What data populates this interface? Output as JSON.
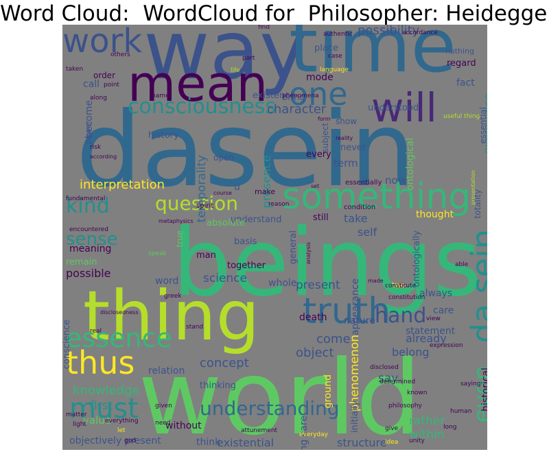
{
  "title": "Word Cloud:  WordCloud for  Philosopher: Heidegger",
  "palette": {
    "background": "#808080",
    "purple": "#440154",
    "indigo": "#3b528b",
    "blue": "#31688e",
    "teal": "#21908d",
    "green": "#35b779",
    "lime": "#5ec962",
    "yellowgreen": "#b5de2b",
    "yellow": "#fde725",
    "violet": "#482878"
  },
  "words": [
    {
      "text": "way",
      "color": "#3b528b"
    },
    {
      "text": "time",
      "color": "#31688e"
    },
    {
      "text": "dasein",
      "color": "#31688e"
    },
    {
      "text": "beings",
      "color": "#35b779"
    },
    {
      "text": "world",
      "color": "#5ec962"
    },
    {
      "text": "thing",
      "color": "#b5de2b"
    },
    {
      "text": "mean",
      "color": "#440154"
    },
    {
      "text": "one",
      "color": "#31688e"
    },
    {
      "text": "will",
      "color": "#482878"
    },
    {
      "text": "work",
      "color": "#3b528b"
    },
    {
      "text": "something",
      "color": "#35b779"
    },
    {
      "text": "truth",
      "color": "#31688e"
    },
    {
      "text": "essence",
      "color": "#35b779"
    },
    {
      "text": "thus",
      "color": "#fde725"
    },
    {
      "text": "must",
      "color": "#21908d"
    },
    {
      "text": "da sein",
      "color": "#21908d"
    },
    {
      "text": "consciousness",
      "color": "#21908d"
    },
    {
      "text": "question",
      "color": "#b5de2b"
    },
    {
      "text": "understanding",
      "color": "#31688e"
    },
    {
      "text": "hand",
      "color": "#3b528b"
    },
    {
      "text": "kind",
      "color": "#21908d"
    },
    {
      "text": "sense",
      "color": "#21908d"
    },
    {
      "text": "even",
      "color": "#35b779"
    },
    {
      "text": "interpretation",
      "color": "#fde725"
    },
    {
      "text": "knowledge",
      "color": "#35b779"
    },
    {
      "text": "concept",
      "color": "#3b528b"
    },
    {
      "text": "possibility",
      "color": "#3b528b"
    },
    {
      "text": "character",
      "color": "#3b528b"
    },
    {
      "text": "presence",
      "color": "#21908d"
    },
    {
      "text": "temporality",
      "color": "#31688e"
    },
    {
      "text": "experience",
      "color": "#21908d"
    },
    {
      "text": "ontological",
      "color": "#5ec962"
    },
    {
      "text": "primordial",
      "color": "#3b528b"
    },
    {
      "text": "science",
      "color": "#3b528b"
    },
    {
      "text": "present",
      "color": "#3b528b"
    },
    {
      "text": "come",
      "color": "#3b528b"
    },
    {
      "text": "object",
      "color": "#3b528b"
    },
    {
      "text": "phenomenon",
      "color": "#fde725"
    },
    {
      "text": "ground",
      "color": "#fde725"
    },
    {
      "text": "rather",
      "color": "#35b779"
    },
    {
      "text": "within",
      "color": "#35b779"
    },
    {
      "text": "say",
      "color": "#3b528b"
    },
    {
      "text": "first",
      "color": "#21908d"
    },
    {
      "text": "value",
      "color": "#5ec962"
    },
    {
      "text": "structure",
      "color": "#3b528b"
    },
    {
      "text": "existential",
      "color": "#3b528b"
    },
    {
      "text": "think",
      "color": "#3b528b"
    },
    {
      "text": "objectively present",
      "color": "#3b528b"
    },
    {
      "text": "without",
      "color": "#440154"
    },
    {
      "text": "historical",
      "color": "#440154"
    },
    {
      "text": "taking care",
      "color": "#3b528b"
    },
    {
      "text": "initially",
      "color": "#3b528b"
    },
    {
      "text": "already",
      "color": "#3b528b"
    },
    {
      "text": "belong",
      "color": "#3b528b"
    },
    {
      "text": "statement",
      "color": "#3b528b"
    },
    {
      "text": "always",
      "color": "#3b528b"
    },
    {
      "text": "care",
      "color": "#3b528b"
    },
    {
      "text": "relation",
      "color": "#3b528b"
    },
    {
      "text": "thinking",
      "color": "#3b528b"
    },
    {
      "text": "conscience",
      "color": "#3b528b"
    },
    {
      "text": "death",
      "color": "#440154"
    },
    {
      "text": "nature",
      "color": "#3b528b"
    },
    {
      "text": "word",
      "color": "#3b528b"
    },
    {
      "text": "whole",
      "color": "#3b528b"
    },
    {
      "text": "appearance",
      "color": "#3b528b"
    },
    {
      "text": "possible",
      "color": "#440154"
    },
    {
      "text": "remain",
      "color": "#5ec962"
    },
    {
      "text": "together",
      "color": "#440154"
    },
    {
      "text": "meaning",
      "color": "#440154"
    },
    {
      "text": "understand",
      "color": "#3b528b"
    },
    {
      "text": "absolute",
      "color": "#5ec962"
    },
    {
      "text": "take",
      "color": "#3b528b"
    },
    {
      "text": "self",
      "color": "#3b528b"
    },
    {
      "text": "still",
      "color": "#440154"
    },
    {
      "text": "thought",
      "color": "#fde725"
    },
    {
      "text": "general",
      "color": "#3b528b"
    },
    {
      "text": "basis",
      "color": "#3b528b"
    },
    {
      "text": "ontologically",
      "color": "#3b528b"
    },
    {
      "text": "term",
      "color": "#3b528b"
    },
    {
      "text": "every",
      "color": "#440154"
    },
    {
      "text": "never",
      "color": "#3b528b"
    },
    {
      "text": "history",
      "color": "#3b528b"
    },
    {
      "text": "open",
      "color": "#3b528b"
    },
    {
      "text": "man",
      "color": "#440154"
    },
    {
      "text": "u",
      "color": "#3b528b"
    },
    {
      "text": "make",
      "color": "#440154"
    },
    {
      "text": "now",
      "color": "#3b528b"
    },
    {
      "text": "regard",
      "color": "#440154"
    },
    {
      "text": "fact",
      "color": "#3b528b"
    },
    {
      "text": "mode",
      "color": "#440154"
    },
    {
      "text": "bring",
      "color": "#3b528b"
    },
    {
      "text": "understood",
      "color": "#3b528b"
    },
    {
      "text": "existence",
      "color": "#3b528b"
    },
    {
      "text": "become",
      "color": "#3b528b"
    },
    {
      "text": "call",
      "color": "#3b528b"
    },
    {
      "text": "order",
      "color": "#440154"
    },
    {
      "text": "place",
      "color": "#3b528b"
    },
    {
      "text": "nothing",
      "color": "#3b528b"
    },
    {
      "text": "show",
      "color": "#3b528b"
    },
    {
      "text": "subject",
      "color": "#3b528b"
    },
    {
      "text": "essential",
      "color": "#3b528b"
    },
    {
      "text": "totality",
      "color": "#3b528b"
    },
    {
      "text": "power",
      "color": "#3b528b"
    },
    {
      "text": "fundamental",
      "color": "#440154"
    },
    {
      "text": "encountered",
      "color": "#440154"
    },
    {
      "text": "true",
      "color": "#5ec962"
    },
    {
      "text": "condition",
      "color": "#440154"
    },
    {
      "text": "essentially",
      "color": "#440154"
    },
    {
      "text": "reason",
      "color": "#440154"
    },
    {
      "text": "spirit",
      "color": "#440154"
    },
    {
      "text": "two",
      "color": "#fde725"
    },
    {
      "text": "able",
      "color": "#440154"
    },
    {
      "text": "constitution",
      "color": "#440154"
    },
    {
      "text": "constitute",
      "color": "#440154"
    },
    {
      "text": "expression",
      "color": "#440154"
    },
    {
      "text": "saying",
      "color": "#440154"
    },
    {
      "text": "view",
      "color": "#440154"
    },
    {
      "text": "disclosed",
      "color": "#440154"
    },
    {
      "text": "determined",
      "color": "#440154"
    },
    {
      "text": "philosophy",
      "color": "#440154"
    },
    {
      "text": "known",
      "color": "#440154"
    },
    {
      "text": "human",
      "color": "#440154"
    },
    {
      "text": "long",
      "color": "#440154"
    },
    {
      "text": "give",
      "color": "#440154"
    },
    {
      "text": "unity",
      "color": "#440154"
    },
    {
      "text": "everyday",
      "color": "#fde725"
    },
    {
      "text": "idea",
      "color": "#fde725"
    },
    {
      "text": "attunement",
      "color": "#440154"
    },
    {
      "text": "need",
      "color": "#440154"
    },
    {
      "text": "god",
      "color": "#440154"
    },
    {
      "text": "light",
      "color": "#440154"
    },
    {
      "text": "let",
      "color": "#fde725"
    },
    {
      "text": "given",
      "color": "#440154"
    },
    {
      "text": "everything",
      "color": "#440154"
    },
    {
      "text": "matter",
      "color": "#440154"
    },
    {
      "text": "greek",
      "color": "#440154"
    },
    {
      "text": "speak",
      "color": "#5ec962"
    },
    {
      "text": "disclosedness",
      "color": "#440154"
    },
    {
      "text": "stand",
      "color": "#440154"
    },
    {
      "text": "real",
      "color": "#440154"
    },
    {
      "text": "course",
      "color": "#440154"
    },
    {
      "text": "set",
      "color": "#440154"
    },
    {
      "text": "according",
      "color": "#440154"
    },
    {
      "text": "risk",
      "color": "#440154"
    },
    {
      "text": "reality",
      "color": "#440154"
    },
    {
      "text": "form",
      "color": "#440154"
    },
    {
      "text": "useful thing",
      "color": "#b5de2b"
    },
    {
      "text": "presentation",
      "color": "#b5de2b"
    },
    {
      "text": "language",
      "color": "#fde725"
    },
    {
      "text": "phenomena",
      "color": "#440154"
    },
    {
      "text": "life",
      "color": "#b5de2b"
    },
    {
      "text": "case",
      "color": "#440154"
    },
    {
      "text": "part",
      "color": "#440154"
    },
    {
      "text": "others",
      "color": "#440154"
    },
    {
      "text": "taken",
      "color": "#440154"
    },
    {
      "text": "point",
      "color": "#440154"
    },
    {
      "text": "along",
      "color": "#440154"
    },
    {
      "text": "name",
      "color": "#440154"
    },
    {
      "text": "find",
      "color": "#440154"
    },
    {
      "text": "authentic",
      "color": "#440154"
    },
    {
      "text": "accordance",
      "color": "#440154"
    },
    {
      "text": "analysis",
      "color": "#440154"
    },
    {
      "text": "made",
      "color": "#440154"
    },
    {
      "text": "metaphysics",
      "color": "#440154"
    }
  ]
}
